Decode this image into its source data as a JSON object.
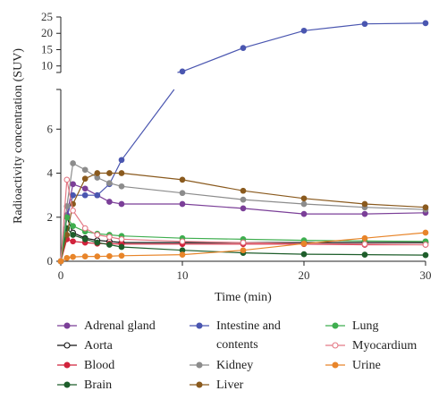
{
  "chart_data": {
    "type": "line",
    "xlabel": "Time (min)",
    "ylabel": "Radioactivity concentration (SUV)",
    "xlim": [
      0,
      30
    ],
    "x_ticks": [
      "0",
      "10",
      "20",
      "30"
    ],
    "y_lower_range": [
      0,
      7.8
    ],
    "y_lower_ticks": [
      "0",
      "2",
      "4",
      "6"
    ],
    "y_upper_range": [
      8,
      25
    ],
    "y_upper_ticks": [
      "10",
      "15",
      "20",
      "25"
    ],
    "broken_y_axis": true,
    "x": [
      0,
      0.5,
      1,
      2,
      3,
      4,
      5,
      10,
      15,
      20,
      25,
      30
    ],
    "legend_placement": "bottom",
    "series": [
      {
        "name": "Adrenal gland",
        "color": "#7b3f98",
        "filled": true,
        "values": [
          0,
          2.1,
          3.5,
          3.3,
          3.0,
          2.7,
          2.6,
          2.6,
          2.4,
          2.15,
          2.15,
          2.2
        ]
      },
      {
        "name": "Aorta",
        "color": "#111111",
        "filled": false,
        "values": [
          0,
          2.0,
          1.3,
          1.05,
          0.95,
          0.9,
          0.85,
          0.85,
          0.85,
          0.85,
          0.85,
          0.85
        ]
      },
      {
        "name": "Blood",
        "color": "#d1233c",
        "filled": true,
        "values": [
          0,
          1.0,
          0.9,
          0.85,
          0.8,
          0.8,
          0.78,
          0.78,
          0.78,
          0.78,
          0.75,
          0.75
        ]
      },
      {
        "name": "Brain",
        "color": "#1e5e2b",
        "filled": true,
        "values": [
          0,
          1.5,
          1.2,
          1.0,
          0.85,
          0.75,
          0.65,
          0.5,
          0.38,
          0.32,
          0.3,
          0.28
        ]
      },
      {
        "name": "Intestine and contents",
        "color": "#4a56b0",
        "filled": true,
        "values": [
          0,
          2.0,
          3.0,
          3.0,
          3.0,
          3.5,
          4.6,
          8.3,
          15.5,
          20.8,
          22.9,
          23.1
        ]
      },
      {
        "name": "Kidney",
        "color": "#8c8c8c",
        "filled": true,
        "values": [
          0,
          2.5,
          4.45,
          4.15,
          3.8,
          3.55,
          3.4,
          3.1,
          2.8,
          2.6,
          2.45,
          2.35
        ]
      },
      {
        "name": "Liver",
        "color": "#8a5a1e",
        "filled": true,
        "values": [
          0,
          1.2,
          2.6,
          3.75,
          4.0,
          4.0,
          4.0,
          3.7,
          3.2,
          2.85,
          2.6,
          2.45
        ]
      },
      {
        "name": "Lung",
        "color": "#3fae4f",
        "filled": true,
        "values": [
          0,
          2.0,
          1.6,
          1.35,
          1.25,
          1.2,
          1.15,
          1.05,
          1.0,
          0.95,
          0.92,
          0.9
        ]
      },
      {
        "name": "Myocardium",
        "color": "#e47a86",
        "filled": false,
        "values": [
          0,
          3.7,
          2.3,
          1.5,
          1.2,
          1.1,
          1.0,
          0.9,
          0.85,
          0.8,
          0.78,
          0.75
        ]
      },
      {
        "name": "Urine",
        "color": "#e8852a",
        "filled": true,
        "values": [
          0,
          0.15,
          0.2,
          0.22,
          0.22,
          0.23,
          0.25,
          0.3,
          0.5,
          0.8,
          1.05,
          1.3
        ]
      }
    ]
  }
}
